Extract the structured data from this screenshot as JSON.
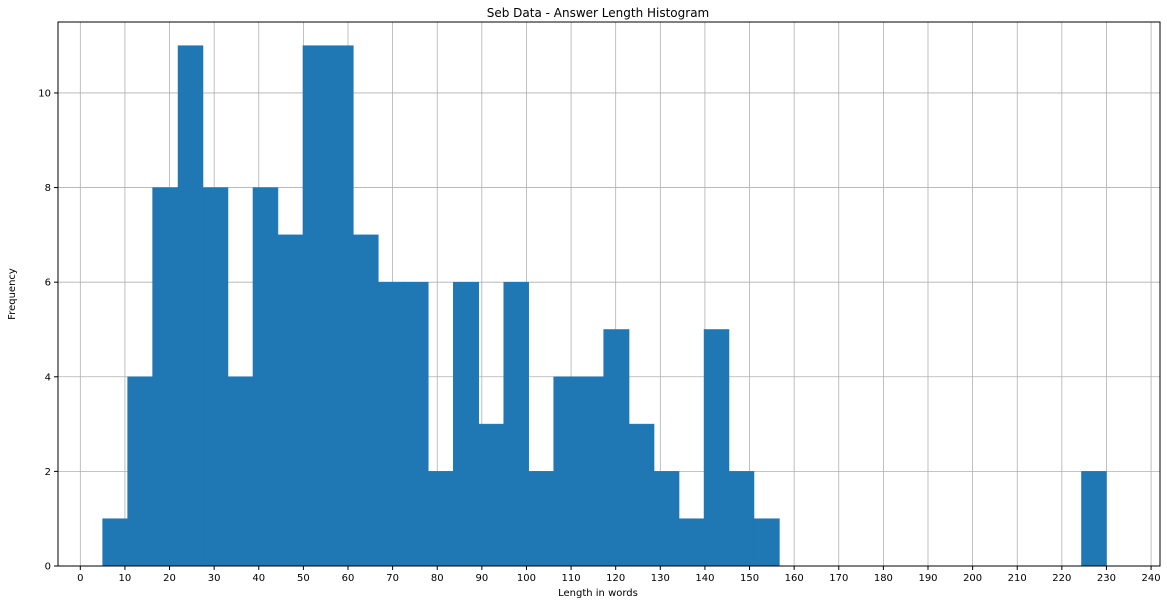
{
  "chart_data": {
    "type": "bar",
    "title": "Seb Data - Answer Length Histogram",
    "xlabel": "Length in words",
    "ylabel": "Frequency",
    "xlim": [
      -5,
      242
    ],
    "ylim": [
      0,
      11.5
    ],
    "xticks": [
      0,
      10,
      20,
      30,
      40,
      50,
      60,
      70,
      80,
      90,
      100,
      110,
      120,
      130,
      140,
      150,
      160,
      170,
      180,
      190,
      200,
      210,
      220,
      230,
      240
    ],
    "yticks": [
      0,
      2,
      4,
      6,
      8,
      10
    ],
    "grid": true,
    "bar_color": "#1f77b4",
    "bins": [
      {
        "x0": 5.0,
        "x1": 10.6,
        "count": 1
      },
      {
        "x0": 10.6,
        "x1": 16.2,
        "count": 4
      },
      {
        "x0": 16.2,
        "x1": 21.9,
        "count": 8
      },
      {
        "x0": 21.9,
        "x1": 27.5,
        "count": 11
      },
      {
        "x0": 27.5,
        "x1": 33.1,
        "count": 8
      },
      {
        "x0": 33.1,
        "x1": 38.7,
        "count": 4
      },
      {
        "x0": 38.7,
        "x1": 44.3,
        "count": 8
      },
      {
        "x0": 44.3,
        "x1": 49.9,
        "count": 7
      },
      {
        "x0": 49.9,
        "x1": 55.6,
        "count": 11
      },
      {
        "x0": 55.6,
        "x1": 61.2,
        "count": 11
      },
      {
        "x0": 61.2,
        "x1": 66.8,
        "count": 7
      },
      {
        "x0": 66.8,
        "x1": 72.4,
        "count": 6
      },
      {
        "x0": 72.4,
        "x1": 78.0,
        "count": 6
      },
      {
        "x0": 78.0,
        "x1": 83.6,
        "count": 2
      },
      {
        "x0": 83.6,
        "x1": 89.3,
        "count": 6
      },
      {
        "x0": 89.3,
        "x1": 94.9,
        "count": 3
      },
      {
        "x0": 94.9,
        "x1": 100.5,
        "count": 6
      },
      {
        "x0": 100.5,
        "x1": 106.1,
        "count": 2
      },
      {
        "x0": 106.1,
        "x1": 111.7,
        "count": 4
      },
      {
        "x0": 111.7,
        "x1": 117.3,
        "count": 4
      },
      {
        "x0": 117.3,
        "x1": 123.0,
        "count": 5
      },
      {
        "x0": 123.0,
        "x1": 128.6,
        "count": 3
      },
      {
        "x0": 128.6,
        "x1": 134.2,
        "count": 2
      },
      {
        "x0": 134.2,
        "x1": 139.8,
        "count": 1
      },
      {
        "x0": 139.8,
        "x1": 145.4,
        "count": 5
      },
      {
        "x0": 145.4,
        "x1": 151.0,
        "count": 2
      },
      {
        "x0": 151.0,
        "x1": 156.7,
        "count": 1
      },
      {
        "x0": 224.4,
        "x1": 230.0,
        "count": 2
      }
    ]
  }
}
